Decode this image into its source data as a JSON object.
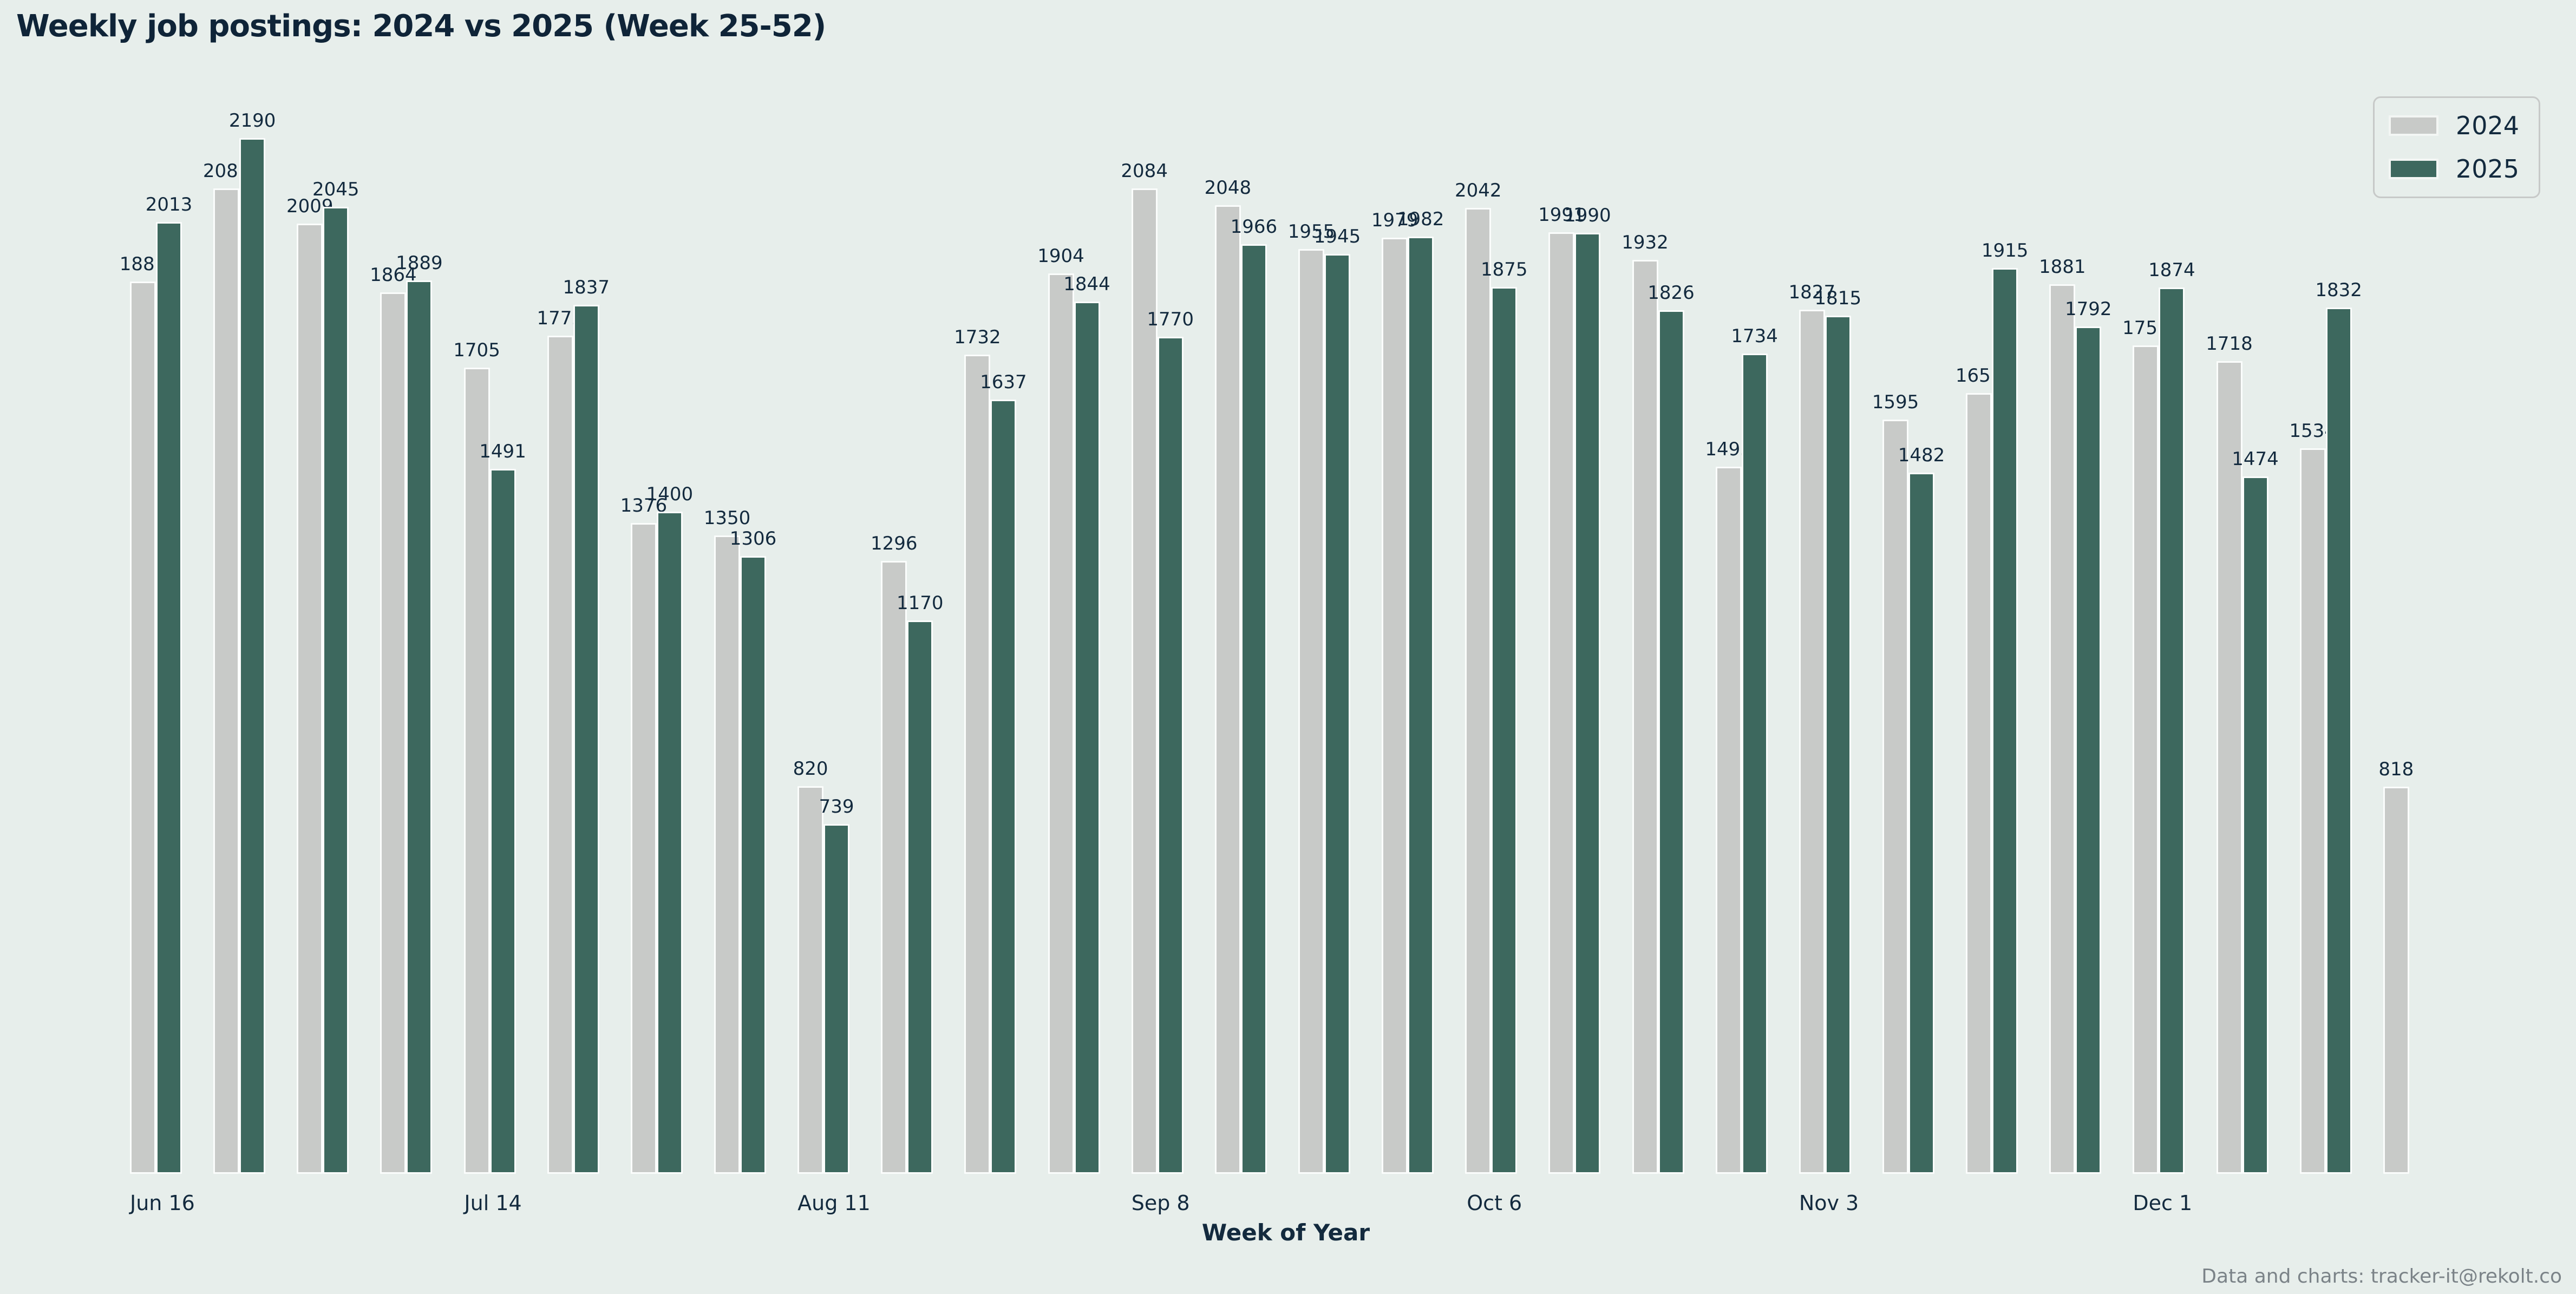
{
  "page": {
    "title": "Weekly job postings: 2024 vs 2025 (Week 25-52)",
    "footer": "Data and charts: tracker-it@rekolt.co"
  },
  "theme": {
    "background": "#e7eeeb",
    "text": "#132a3e",
    "bar_2024": "#c8cac8",
    "bar_2025": "#3d685e",
    "bar_border": "#fbfdfc",
    "footer_text": "#7b8388"
  },
  "chart_data": {
    "type": "bar",
    "title": "Weekly job postings: 2024 vs 2025 (Week 25-52)",
    "xlabel": "Week of Year",
    "ylabel": "",
    "ylim": [
      0,
      2250
    ],
    "grid": false,
    "legend_position": "top-right",
    "n_groups": 28,
    "x_tick_labels": [
      {
        "index": 0,
        "label": "Jun 16"
      },
      {
        "index": 4,
        "label": "Jul 14"
      },
      {
        "index": 8,
        "label": "Aug 11"
      },
      {
        "index": 12,
        "label": "Sep 8"
      },
      {
        "index": 16,
        "label": "Oct 6"
      },
      {
        "index": 20,
        "label": "Nov 3"
      },
      {
        "index": 24,
        "label": "Dec 1"
      }
    ],
    "series": [
      {
        "name": "2024",
        "color": "#c8cac8",
        "values": [
          1887,
          2083,
          2009,
          1864,
          1705,
          1772,
          1376,
          1350,
          820,
          1296,
          1732,
          1904,
          2084,
          2048,
          1955,
          1979,
          2042,
          1991,
          1932,
          1495,
          1827,
          1595,
          1651,
          1881,
          1752,
          1718,
          1534,
          818
        ]
      },
      {
        "name": "2025",
        "color": "#3d685e",
        "values": [
          2013,
          2190,
          2045,
          1889,
          1491,
          1837,
          1400,
          1306,
          739,
          1170,
          1637,
          1844,
          1770,
          1966,
          1945,
          1982,
          1875,
          1990,
          1826,
          1734,
          1815,
          1482,
          1915,
          1792,
          1874,
          1474,
          1832,
          null
        ]
      }
    ]
  }
}
